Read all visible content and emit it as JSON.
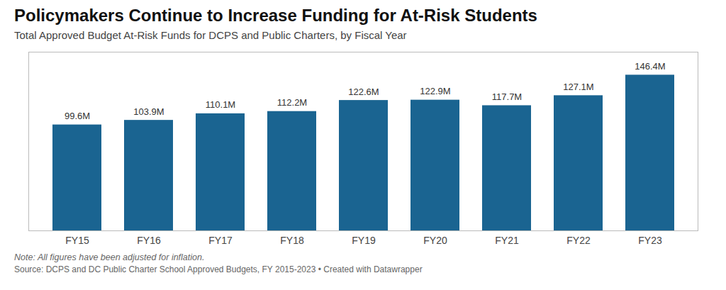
{
  "chart_data": {
    "type": "bar",
    "title": "Policymakers Continue to Increase Funding for At-Risk Students",
    "subtitle": "Total Approved Budget At-Risk Funds for DCPS and Public Charters, by Fiscal Year",
    "note": "Note: All figures have been adjusted for inflation.",
    "source": "Source: DCPS and DC Public Charter School Approved Budgets, FY 2015-2023 • Created with Datawrapper",
    "categories": [
      "FY15",
      "FY16",
      "FY17",
      "FY18",
      "FY19",
      "FY20",
      "FY21",
      "FY22",
      "FY23"
    ],
    "values": [
      99.6,
      103.9,
      110.1,
      112.2,
      122.6,
      122.9,
      117.7,
      127.1,
      146.4
    ],
    "value_labels": [
      "99.6M",
      "103.9M",
      "110.1M",
      "112.2M",
      "122.6M",
      "122.9M",
      "117.7M",
      "127.1M",
      "146.4M"
    ],
    "data_labels": true,
    "color": "#1a6491",
    "ylim": [
      0,
      168
    ],
    "tick_labels": "x",
    "grid": false
  }
}
